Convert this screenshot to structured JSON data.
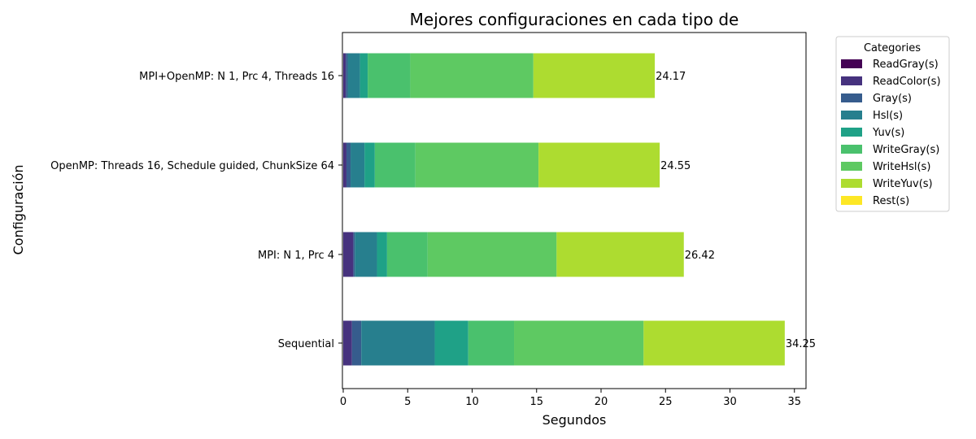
{
  "chart_data": {
    "type": "bar",
    "orientation": "horizontal",
    "stacked": true,
    "title": "Mejores configuraciones en cada tipo de",
    "xlabel": "Segundos",
    "ylabel": "Configuración",
    "xlim": [
      0,
      36
    ],
    "xticks": [
      0,
      5,
      10,
      15,
      20,
      25,
      30,
      35
    ],
    "grid": false,
    "legend": {
      "title": "Categories",
      "placement": "outside-top-right"
    },
    "categories": [
      "Sequential",
      "MPI: N 1, Prc 4",
      "OpenMP: Threads 16, Schedule guided, ChunkSize 64",
      "MPI+OpenMP: N 1, Prc 4, Threads 16"
    ],
    "totals": [
      "34.25",
      "26.42",
      "24.55",
      "24.17"
    ],
    "series": [
      {
        "name": "ReadGray(s)",
        "color": "#440154",
        "values": [
          0.0,
          0.0,
          0.0,
          0.0
        ]
      },
      {
        "name": "ReadColor(s)",
        "color": "#46327e",
        "values": [
          0.68,
          0.78,
          0.25,
          0.2
        ]
      },
      {
        "name": "Gray(s)",
        "color": "#365c8d",
        "values": [
          0.72,
          0.12,
          0.32,
          0.15
        ]
      },
      {
        "name": "Hsl(s)",
        "color": "#277f8e",
        "values": [
          5.7,
          1.72,
          1.08,
          0.95
        ]
      },
      {
        "name": "Yuv(s)",
        "color": "#1fa187",
        "values": [
          2.6,
          0.78,
          0.8,
          0.6
        ]
      },
      {
        "name": "WriteGray(s)",
        "color": "#4ac16d",
        "values": [
          3.55,
          3.15,
          3.15,
          3.3
        ]
      },
      {
        "name": "WriteHsl(s)",
        "color": "#5ec962",
        "values": [
          10.05,
          10.0,
          9.55,
          9.55
        ]
      },
      {
        "name": "WriteYuv(s)",
        "color": "#addc30",
        "values": [
          10.95,
          9.87,
          9.4,
          9.42
        ]
      },
      {
        "name": "Rest(s)",
        "color": "#fde725",
        "values": [
          0.0,
          0.0,
          0.0,
          0.0
        ]
      }
    ]
  }
}
